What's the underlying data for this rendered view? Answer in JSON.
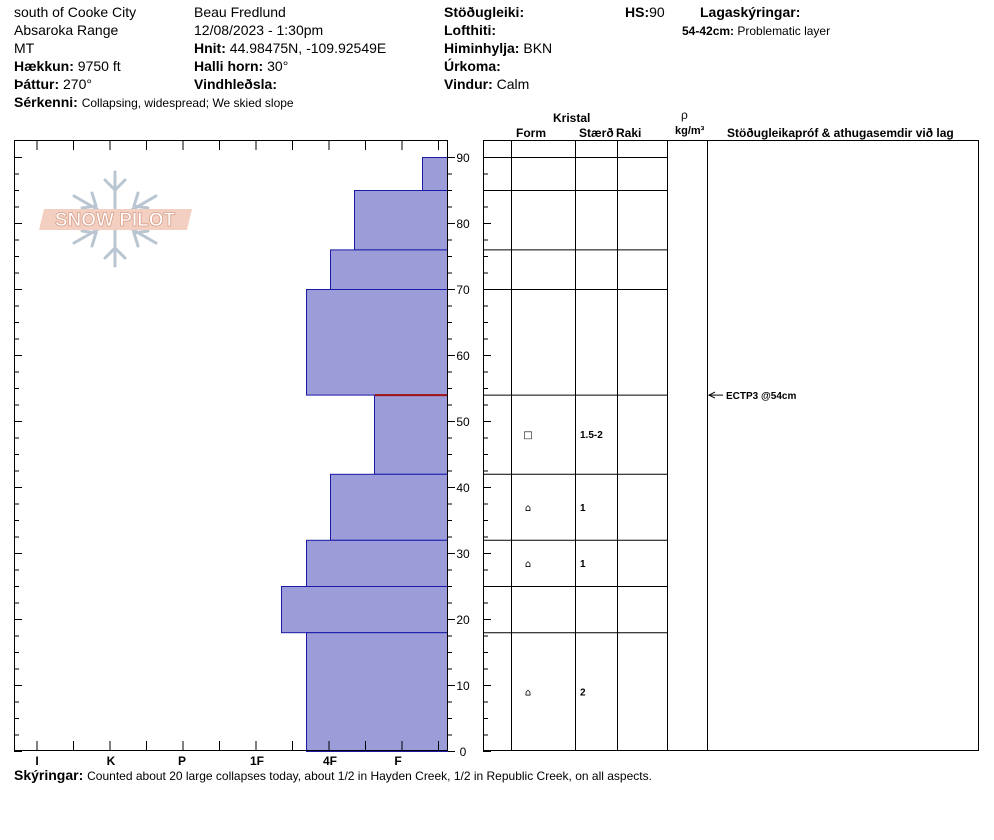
{
  "header": {
    "location": "south of Cooke City",
    "range": "Absaroka Range",
    "state": "MT",
    "elevation_label": "Hækkun:",
    "elevation_value": "9750 ft",
    "aspect_label": "Þáttur:",
    "aspect_value": "270°",
    "features_label": "Sérkenni:",
    "features_value": "Collapsing, widespread;  We skied slope",
    "observer": "Beau  Fredlund",
    "datetime": "12/08/2023 - 1:30pm",
    "coords_label": "Hnit:",
    "coords_value": "44.98475N, -109.92549E",
    "slope_label": "Halli horn:",
    "slope_value": "30°",
    "wind_loading_label": "Vindhleðsla:",
    "stability_label": "Stöðugleiki:",
    "air_temp_label": "Lofthiti:",
    "sky_label": "Himinhylja:",
    "sky_value": "BKN",
    "precip_label": "Úrkoma:",
    "wind_label": "Vindur:",
    "wind_value": "Calm",
    "hs_label": "HS:",
    "hs_value": "90",
    "layer_notes_label": "Lagaskýringar:",
    "problem_range": "54-42cm:",
    "problem_text": "Problematic layer"
  },
  "table_headers": {
    "kristal": "Kristal",
    "form": "Form",
    "size": "Stærð",
    "moisture": "Raki",
    "rho": "ρ",
    "density_unit": "kg/m³",
    "tests": "Stöðugleikapróf & athugasemdir við lag"
  },
  "footer": {
    "notes_label": "Skýringar:",
    "notes_text": "Counted about 20 large collapses today, about 1/2 in Hayden Creek, 1/2 in Republic Creek, on all aspects."
  },
  "logo": {
    "text": "SNOW PILOT"
  },
  "colors": {
    "bar_fill": "#9c9cd9",
    "bar_stroke": "#1a1aa6",
    "weak_layer": "#a01010"
  },
  "chart_data": {
    "type": "bar",
    "orientation": "horizontal",
    "ylabel": "",
    "ylim": [
      0,
      90
    ],
    "y_ticks": [
      0,
      10,
      20,
      30,
      40,
      50,
      60,
      70,
      80,
      90
    ],
    "x_ticks": [
      "I",
      "K",
      "P",
      "1F",
      "4F",
      "F"
    ],
    "layers": [
      {
        "bottom": 85,
        "top": 90,
        "hardness": "F-"
      },
      {
        "bottom": 76,
        "top": 85,
        "hardness": "4F-"
      },
      {
        "bottom": 70,
        "top": 76,
        "hardness": "4F"
      },
      {
        "bottom": 54,
        "top": 70,
        "hardness": "4F+"
      },
      {
        "bottom": 42,
        "top": 54,
        "hardness": "F+"
      },
      {
        "bottom": 32,
        "top": 42,
        "hardness": "4F"
      },
      {
        "bottom": 25,
        "top": 32,
        "hardness": "4F+"
      },
      {
        "bottom": 18,
        "top": 25,
        "hardness": "1F-"
      },
      {
        "bottom": 0,
        "top": 18,
        "hardness": "4F+"
      }
    ],
    "weak_layer_depth": 54,
    "grain_rows": [
      {
        "depth": 48,
        "form": "□",
        "size": "1.5-2"
      },
      {
        "depth": 37,
        "form": "⌂",
        "size": "1"
      },
      {
        "depth": 28.5,
        "form": "⌂",
        "size": "1"
      },
      {
        "depth": 9,
        "form": "⌂",
        "size": "2"
      }
    ],
    "test": {
      "depth": 54,
      "text": "ECTP3 @54cm"
    }
  }
}
